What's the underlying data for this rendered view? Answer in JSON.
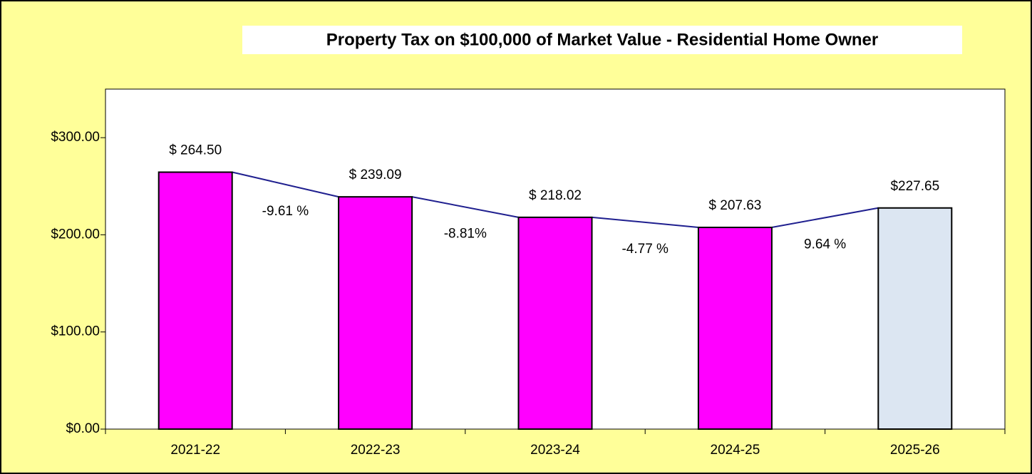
{
  "chart_data": {
    "type": "bar",
    "title": "Property Tax on $100,000 of Market Value - Residential Home Owner",
    "categories": [
      "2021-22",
      "2022-23",
      "2023-24",
      "2024-25",
      "2025-26"
    ],
    "values": [
      264.5,
      239.09,
      218.02,
      207.63,
      227.65
    ],
    "value_labels": [
      "$ 264.50",
      "$ 239.09",
      "$ 218.02",
      "$ 207.63",
      "$227.65"
    ],
    "colors": [
      "#ff00ff",
      "#ff00ff",
      "#ff00ff",
      "#ff00ff",
      "#dce6f2"
    ],
    "line_color": "#1f1f8f",
    "changes": {
      "values": [
        -9.61,
        -8.81,
        -4.77,
        9.64
      ],
      "value_labels": [
        "-9.61 %",
        "-8.81%",
        "-4.77 %",
        "9.64 %"
      ]
    },
    "ylim": [
      0,
      350
    ],
    "yticks": [
      {
        "value": 0,
        "label": "$0.00"
      },
      {
        "value": 100,
        "label": "$100.00"
      },
      {
        "value": 200,
        "label": "$200.00"
      },
      {
        "value": 300,
        "label": "$300.00"
      }
    ],
    "grid": false
  }
}
